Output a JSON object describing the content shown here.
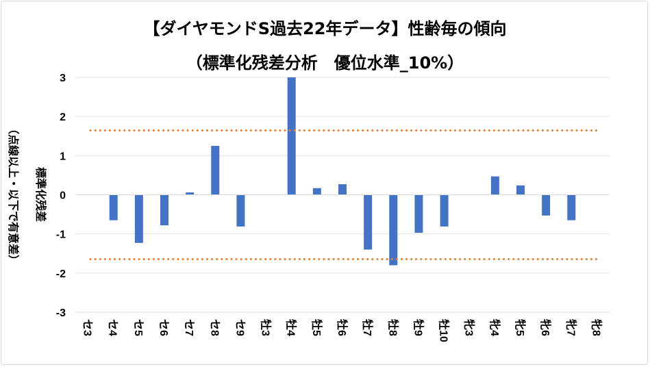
{
  "chart_data": {
    "type": "bar",
    "title": "【ダイヤモンドS過去22年データ】性齢毎の傾向",
    "subtitle": "（標準化残差分析　優位水準_10%）",
    "ylabel": "標準化残差",
    "ylabel2": "（点線以上・以下で有意差）",
    "xlabel": "",
    "ylim": [
      -3,
      3
    ],
    "yticks": [
      "3",
      "2",
      "1",
      "0",
      "-1",
      "-2",
      "-3"
    ],
    "categories": [
      "セ3",
      "セ4",
      "セ5",
      "セ6",
      "セ7",
      "セ8",
      "セ9",
      "牡3",
      "牡4",
      "牡5",
      "牡6",
      "牡7",
      "牡8",
      "牡9",
      "牡10",
      "牝3",
      "牝4",
      "牝5",
      "牝6",
      "牝7",
      "牝8"
    ],
    "values": [
      0,
      -0.65,
      -1.23,
      -0.78,
      0.06,
      1.25,
      -0.81,
      0,
      3.0,
      0.17,
      0.27,
      -1.4,
      -1.8,
      -0.97,
      -0.81,
      0,
      0.47,
      0.24,
      -0.53,
      -0.65,
      0
    ],
    "thresholds": [
      1.645,
      -1.645
    ],
    "bar_color": "#4472c4",
    "threshold_color": "#ed7d31",
    "grid": true
  }
}
